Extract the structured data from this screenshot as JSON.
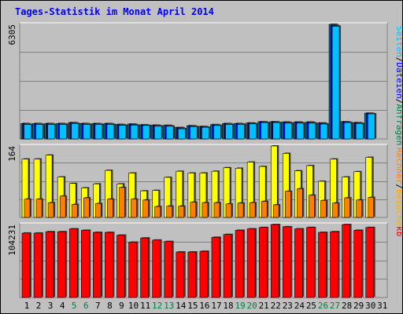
{
  "title": "Tages-Statistik im Monat April 2014",
  "panels": {
    "top": {
      "max_label": "6305",
      "legend": [
        {
          "text": "Anfragen",
          "color": "#008040"
        },
        {
          "text": "Dateien",
          "color": "#0000ff"
        },
        {
          "text": "Seiten",
          "color": "#00c0ff"
        }
      ]
    },
    "middle": {
      "max_label": "164",
      "legend": [
        {
          "text": "Besuche",
          "color": "#ffaa00"
        },
        {
          "text": "Rechner",
          "color": "#ff8000"
        }
      ]
    },
    "bottom": {
      "max_label": "104231",
      "legend": [
        {
          "text": "kb",
          "color": "#ff0000"
        }
      ]
    }
  },
  "colors": {
    "background": "#c0c0c0",
    "anfragen": "#008080",
    "dateien": "#0000ff",
    "seiten": "#00c0ff",
    "besuche": "#ffff00",
    "rechner": "#ff8000",
    "kb": "#ff0000",
    "weekday_label": "#000000",
    "weekend_label": "#008040"
  },
  "chart_data": {
    "type": "bar",
    "categories": [
      "1",
      "2",
      "3",
      "4",
      "5",
      "6",
      "7",
      "8",
      "9",
      "10",
      "11",
      "12",
      "13",
      "14",
      "15",
      "16",
      "17",
      "18",
      "19",
      "20",
      "21",
      "22",
      "23",
      "24",
      "25",
      "26",
      "27",
      "28",
      "29",
      "30",
      "31"
    ],
    "weekend_days": [
      "5",
      "6",
      "12",
      "13",
      "19",
      "20",
      "26",
      "27"
    ],
    "series": [
      {
        "name": "Anfragen",
        "panel": "top",
        "ymax": 6305,
        "values": [
          850,
          850,
          850,
          850,
          900,
          850,
          850,
          850,
          800,
          820,
          780,
          760,
          750,
          630,
          730,
          690,
          790,
          850,
          850,
          880,
          950,
          950,
          930,
          930,
          930,
          880,
          6305,
          950,
          900,
          1420,
          null
        ]
      },
      {
        "name": "Dateien",
        "panel": "top",
        "ymax": 6305,
        "values": [
          830,
          830,
          830,
          830,
          880,
          830,
          830,
          830,
          780,
          800,
          760,
          740,
          730,
          610,
          710,
          670,
          770,
          830,
          830,
          860,
          930,
          930,
          910,
          910,
          910,
          860,
          6250,
          930,
          880,
          1400,
          null
        ]
      },
      {
        "name": "Seiten",
        "panel": "top",
        "ymax": 6305,
        "values": [
          800,
          800,
          800,
          800,
          850,
          800,
          800,
          800,
          750,
          760,
          740,
          710,
          700,
          560,
          680,
          640,
          740,
          800,
          800,
          830,
          900,
          900,
          870,
          870,
          870,
          820,
          6200,
          900,
          850,
          1380,
          null
        ]
      },
      {
        "name": "Besuche",
        "panel": "middle",
        "ymax": 164,
        "values": [
          134,
          134,
          143,
          93,
          78,
          68,
          77,
          108,
          77,
          102,
          61,
          62,
          92,
          106,
          102,
          102,
          106,
          114,
          113,
          127,
          117,
          164,
          147,
          107,
          119,
          83,
          134,
          93,
          105,
          138,
          null
        ]
      },
      {
        "name": "Rechner",
        "panel": "middle",
        "ymax": 164,
        "values": [
          42,
          42,
          34,
          49,
          30,
          45,
          32,
          42,
          69,
          42,
          40,
          25,
          26,
          26,
          35,
          34,
          34,
          31,
          33,
          34,
          37,
          29,
          60,
          66,
          51,
          39,
          33,
          45,
          40,
          46,
          null
        ]
      },
      {
        "name": "kb",
        "panel": "bottom",
        "ymax": 104231,
        "values": [
          92000,
          92000,
          94000,
          94000,
          98000,
          96000,
          93000,
          93000,
          89000,
          79000,
          85000,
          82000,
          80000,
          65000,
          65000,
          66000,
          86000,
          90000,
          96000,
          98000,
          100000,
          104231,
          101000,
          98000,
          100000,
          93000,
          94000,
          104231,
          96000,
          100000,
          null
        ]
      }
    ]
  }
}
